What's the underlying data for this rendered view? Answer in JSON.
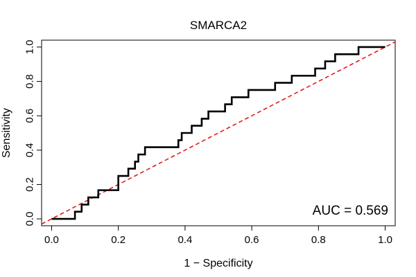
{
  "chart_data": {
    "type": "line",
    "title": "SMARCA2",
    "xlabel": "1 − Specificity",
    "ylabel": "Sensitivity",
    "xlim": [
      -0.03,
      1.03
    ],
    "ylim": [
      -0.04,
      1.04
    ],
    "x_ticks": [
      "0.0",
      "0.2",
      "0.4",
      "0.6",
      "0.8",
      "1.0"
    ],
    "y_ticks": [
      "0.0",
      "0.2",
      "0.4",
      "0.6",
      "0.8",
      "1.0"
    ],
    "grid": false,
    "series": [
      {
        "color": "#000000",
        "style": "solid",
        "points": [
          [
            0.0,
            0.0
          ],
          [
            0.07,
            0.0
          ],
          [
            0.07,
            0.042
          ],
          [
            0.09,
            0.042
          ],
          [
            0.09,
            0.083
          ],
          [
            0.11,
            0.083
          ],
          [
            0.11,
            0.125
          ],
          [
            0.14,
            0.125
          ],
          [
            0.14,
            0.167
          ],
          [
            0.2,
            0.167
          ],
          [
            0.2,
            0.25
          ],
          [
            0.23,
            0.25
          ],
          [
            0.23,
            0.292
          ],
          [
            0.25,
            0.292
          ],
          [
            0.25,
            0.333
          ],
          [
            0.26,
            0.333
          ],
          [
            0.26,
            0.375
          ],
          [
            0.28,
            0.375
          ],
          [
            0.28,
            0.417
          ],
          [
            0.38,
            0.417
          ],
          [
            0.38,
            0.458
          ],
          [
            0.39,
            0.458
          ],
          [
            0.39,
            0.5
          ],
          [
            0.42,
            0.5
          ],
          [
            0.42,
            0.542
          ],
          [
            0.45,
            0.542
          ],
          [
            0.45,
            0.583
          ],
          [
            0.47,
            0.583
          ],
          [
            0.47,
            0.625
          ],
          [
            0.52,
            0.625
          ],
          [
            0.52,
            0.667
          ],
          [
            0.54,
            0.667
          ],
          [
            0.54,
            0.708
          ],
          [
            0.59,
            0.708
          ],
          [
            0.59,
            0.75
          ],
          [
            0.67,
            0.75
          ],
          [
            0.67,
            0.792
          ],
          [
            0.72,
            0.792
          ],
          [
            0.72,
            0.833
          ],
          [
            0.79,
            0.833
          ],
          [
            0.79,
            0.875
          ],
          [
            0.82,
            0.875
          ],
          [
            0.82,
            0.917
          ],
          [
            0.85,
            0.917
          ],
          [
            0.85,
            0.958
          ],
          [
            0.92,
            0.958
          ],
          [
            0.92,
            1.0
          ],
          [
            1.0,
            1.0
          ]
        ]
      },
      {
        "color": "#e31a1c",
        "style": "dashed",
        "points": [
          [
            -0.03,
            -0.03
          ],
          [
            1.03,
            1.03
          ]
        ]
      }
    ],
    "annotation": "AUC = 0.569"
  }
}
